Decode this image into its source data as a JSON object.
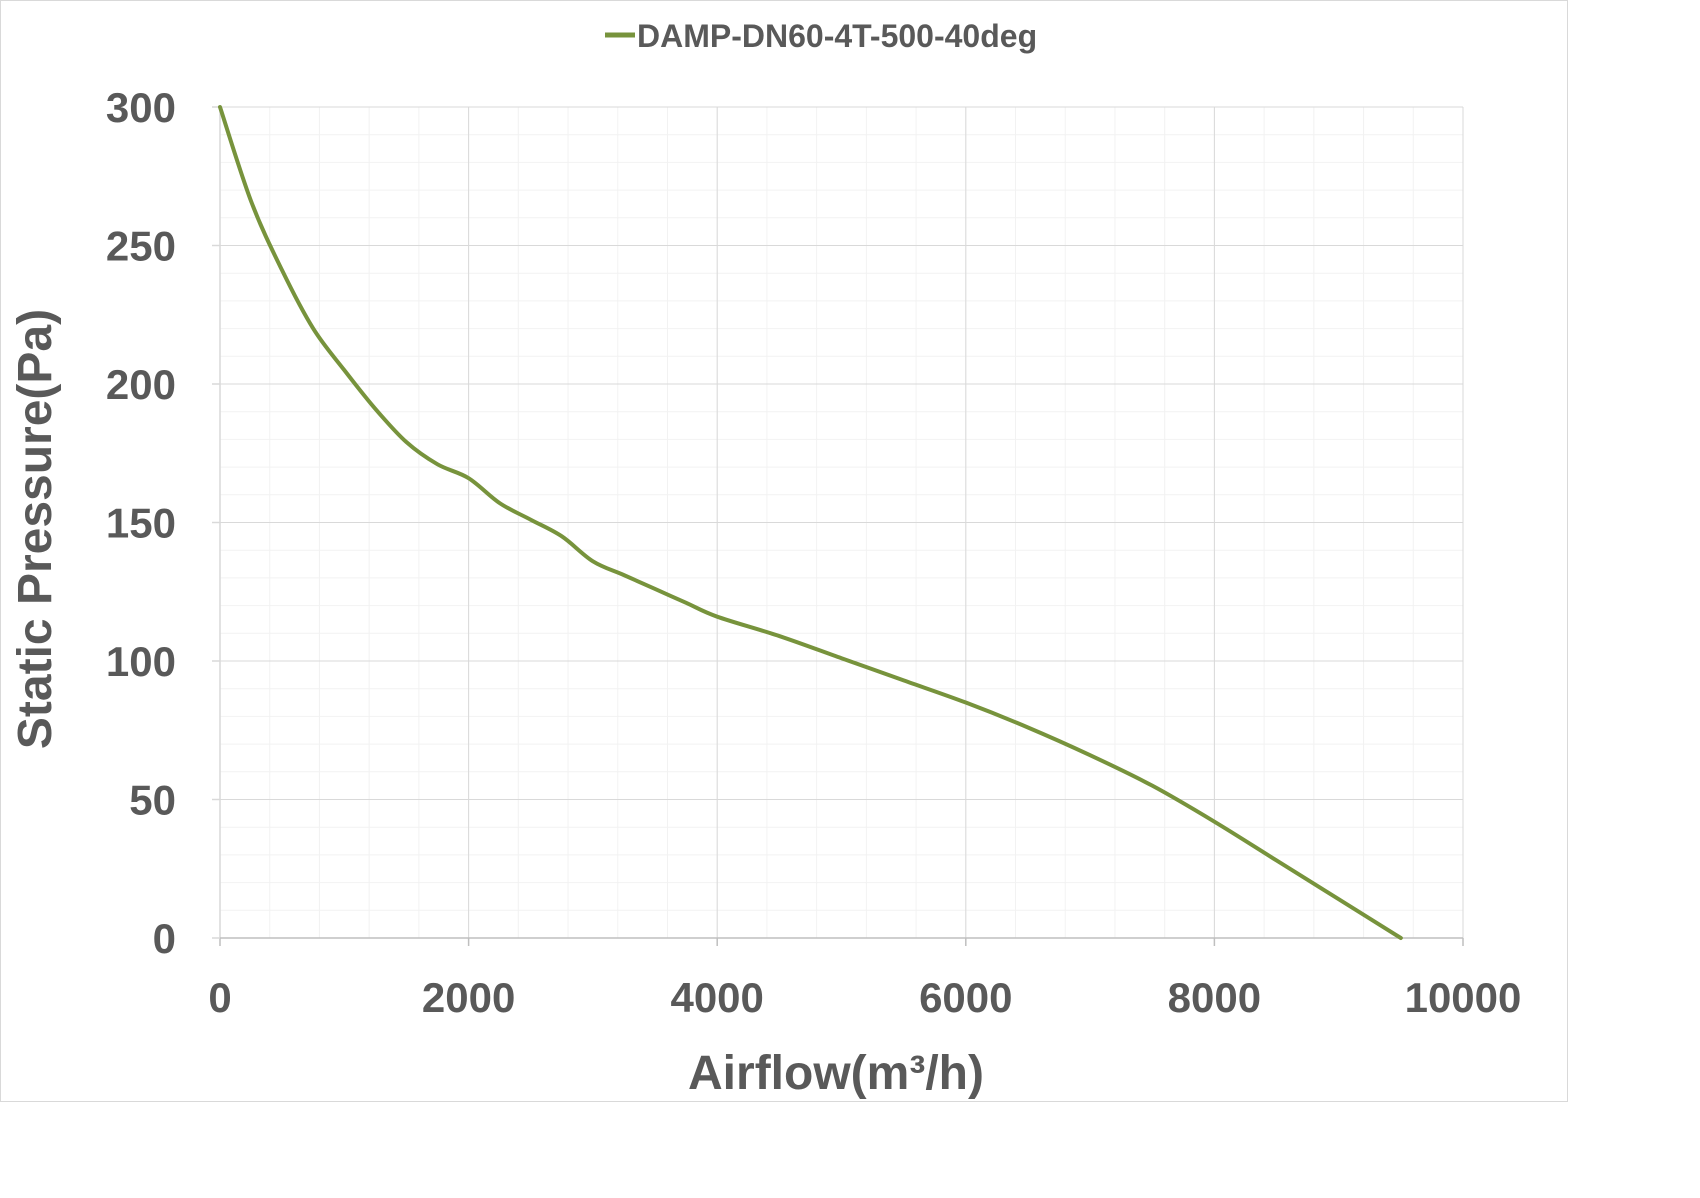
{
  "chart_data": {
    "type": "line",
    "xlabel": "Airflow(m³/h)",
    "ylabel": "Static Pressure(Pa)",
    "xlim": [
      0,
      10000
    ],
    "ylim": [
      0,
      300
    ],
    "x_ticks": [
      "0",
      "2000",
      "4000",
      "6000",
      "8000",
      "10000"
    ],
    "y_ticks": [
      "0",
      "50",
      "100",
      "150",
      "200",
      "250",
      "300"
    ],
    "grid": "major and minor",
    "legend_position": "top-center",
    "series": [
      {
        "name": "DAMP-DN60-4T-500-40deg",
        "color": "#77933c",
        "x": [
          0,
          250,
          500,
          750,
          1000,
          1250,
          1500,
          1750,
          2000,
          2250,
          2500,
          2750,
          3000,
          3250,
          3500,
          3750,
          4000,
          4500,
          5000,
          5500,
          6000,
          6500,
          7000,
          7500,
          8000,
          8500,
          9000,
          9500
        ],
        "y": [
          300,
          266,
          241,
          220,
          205,
          191,
          179,
          171,
          166,
          157,
          151,
          145,
          136,
          131,
          126,
          121,
          116,
          109,
          101,
          93,
          85,
          76,
          66,
          55,
          42,
          28,
          14,
          0
        ]
      }
    ]
  }
}
